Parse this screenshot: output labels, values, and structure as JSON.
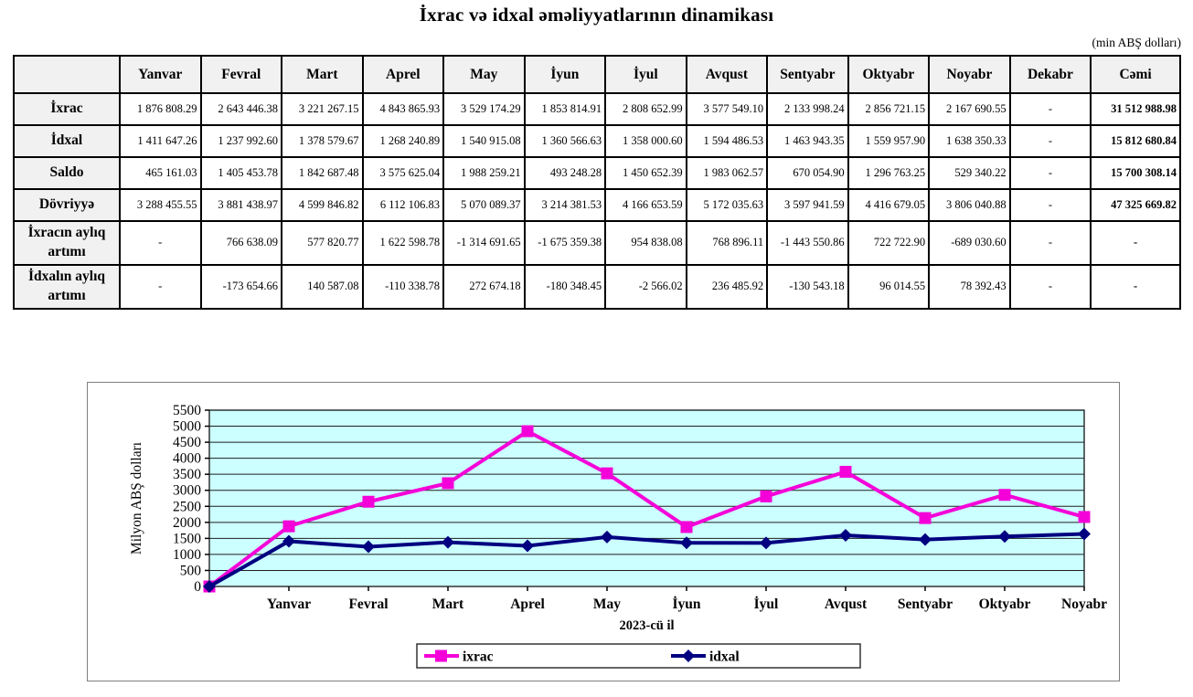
{
  "title": "İxrac və idxal əməliyyatlarının dinamikası",
  "unit_note": "(min ABŞ dolları)",
  "table": {
    "columns": [
      "",
      "Yanvar",
      "Fevral",
      "Mart",
      "Aprel",
      "May",
      "İyun",
      "İyul",
      "Avqust",
      "Sentyabr",
      "Oktyabr",
      "Noyabr",
      "Dekabr",
      "Cəmi"
    ],
    "rows": [
      {
        "label": "İxrac",
        "values": [
          "1 876 808.29",
          "2 643 446.38",
          "3 221 267.15",
          "4 843 865.93",
          "3 529 174.29",
          "1 853 814.91",
          "2 808 652.99",
          "3 577 549.10",
          "2 133 998.24",
          "2 856 721.15",
          "2 167 690.55",
          "-"
        ],
        "total": "31 512 988.98"
      },
      {
        "label": "İdxal",
        "values": [
          "1 411 647.26",
          "1 237 992.60",
          "1 378 579.67",
          "1 268 240.89",
          "1 540 915.08",
          "1 360 566.63",
          "1 358 000.60",
          "1 594 486.53",
          "1 463 943.35",
          "1 559 957.90",
          "1 638 350.33",
          "-"
        ],
        "total": "15 812 680.84"
      },
      {
        "label": "Saldo",
        "values": [
          "465 161.03",
          "1 405 453.78",
          "1 842 687.48",
          "3 575 625.04",
          "1 988 259.21",
          "493 248.28",
          "1 450 652.39",
          "1 983 062.57",
          "670 054.90",
          "1 296 763.25",
          "529 340.22",
          "-"
        ],
        "total": "15 700 308.14"
      },
      {
        "label": "Dövriyyə",
        "values": [
          "3 288 455.55",
          "3 881 438.97",
          "4 599 846.82",
          "6 112 106.83",
          "5 070 089.37",
          "3 214 381.53",
          "4 166 653.59",
          "5 172 035.63",
          "3 597 941.59",
          "4 416 679.05",
          "3 806 040.88",
          "-"
        ],
        "total": "47 325 669.82"
      },
      {
        "label": "İxracın aylıq artımı",
        "values": [
          "-",
          "766 638.09",
          "577 820.77",
          "1 622 598.78",
          "-1 314 691.65",
          "-1 675 359.38",
          "954 838.08",
          "768 896.11",
          "-1 443 550.86",
          "722 722.90",
          "-689 030.60",
          "-"
        ],
        "total": "-"
      },
      {
        "label": "İdxalın aylıq artımı",
        "values": [
          "-",
          "-173 654.66",
          "140 587.08",
          "-110 338.78",
          "272 674.18",
          "-180 348.45",
          "-2 566.02",
          "236 485.92",
          "-130 543.18",
          "96 014.55",
          "78 392.43",
          "-"
        ],
        "total": "-"
      }
    ]
  },
  "chart_data": {
    "type": "line",
    "title": "",
    "xlabel": "2023-cü il",
    "ylabel": "Milyon ABŞ dolları",
    "ylim": [
      0,
      5500
    ],
    "ytick_step": 500,
    "grid": "horizontal",
    "legend_position": "bottom",
    "plot_bg": "#ccffff",
    "categories": [
      "",
      "Yanvar",
      "Fevral",
      "Mart",
      "Aprel",
      "May",
      "İyun",
      "İyul",
      "Avqust",
      "Sentyabr",
      "Oktyabr",
      "Noyabr"
    ],
    "series": [
      {
        "name": "ixrac",
        "color": "#f400d8",
        "marker": "square",
        "values": [
          0,
          1876.8,
          2643.4,
          3221.3,
          4843.9,
          3529.2,
          1853.8,
          2808.7,
          3577.5,
          2134.0,
          2856.7,
          2167.7
        ]
      },
      {
        "name": "idxal",
        "color": "#000080",
        "marker": "diamond",
        "values": [
          0,
          1411.6,
          1238.0,
          1378.6,
          1268.2,
          1540.9,
          1360.6,
          1358.0,
          1594.5,
          1463.9,
          1560.0,
          1638.4
        ]
      }
    ]
  }
}
